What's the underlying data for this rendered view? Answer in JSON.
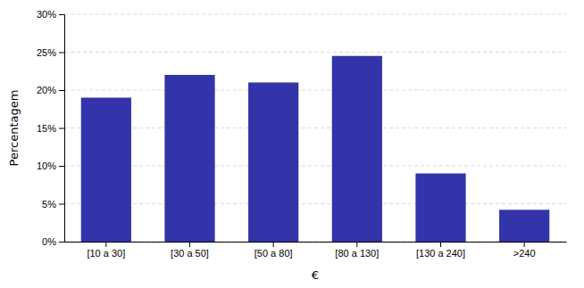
{
  "chart_data": {
    "type": "bar",
    "categories": [
      "[10 a 30]",
      "[30 a 50]",
      "[50 a 80]",
      "[80 a 130]",
      "[130 a 240]",
      ">240"
    ],
    "values": [
      19.0,
      22.0,
      21.0,
      24.5,
      9.0,
      4.2
    ],
    "color": "#3333aa",
    "xlabel": "€",
    "ylabel": "Percentagem",
    "ylim": [
      0,
      30
    ],
    "yticks": [
      {
        "value": 0,
        "label": "0%"
      },
      {
        "value": 5,
        "label": "5%"
      },
      {
        "value": 10,
        "label": "10%"
      },
      {
        "value": 15,
        "label": "15%"
      },
      {
        "value": 20,
        "label": "20%"
      },
      {
        "value": 25,
        "label": "25%"
      },
      {
        "value": 30,
        "label": "30%"
      }
    ],
    "grid": true
  }
}
